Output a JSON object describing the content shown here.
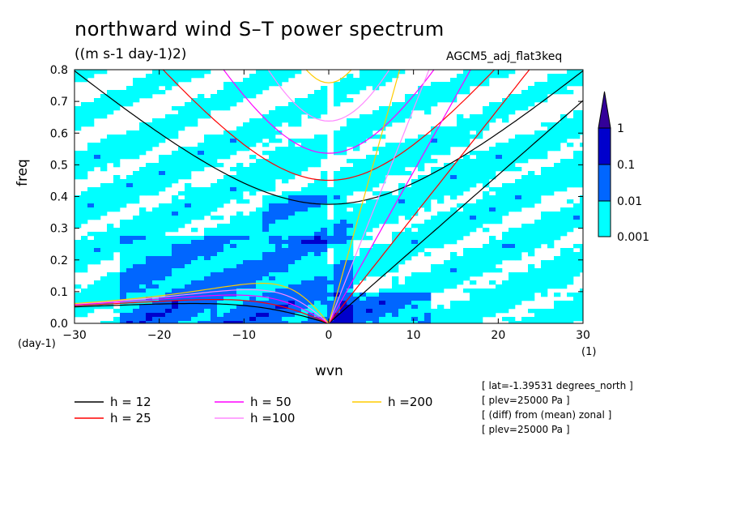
{
  "header": {
    "title": "northward wind S–T power spectrum",
    "units": "((m s-1 day-1)2)",
    "run_name": "AGCM5_adj_flat3keq"
  },
  "axes_text": {
    "ylabel": "freq",
    "xlabel": "wvn",
    "y_unit": "(day-1)",
    "x_unit": "(1)"
  },
  "info_lines": [
    "[ lat=-1.39531 degrees_north ]",
    "[ plev=25000 Pa ]",
    "[ (diff) from (mean) zonal ]",
    "[ plev=25000 Pa ]"
  ],
  "colors": {
    "level_0": "#00ffff",
    "level_1": "#0066ff",
    "level_2": "#0000cc",
    "level_over": "#330099",
    "h12": "#000000",
    "h25": "#ff0000",
    "h50": "#ff00ff",
    "h100": "#ff88ff",
    "h200": "#ffcc00"
  },
  "chart_data": {
    "type": "heatmap",
    "title": "northward wind S–T power spectrum",
    "xlabel": "wvn",
    "ylabel": "freq",
    "xlim": [
      -30,
      30
    ],
    "ylim": [
      0,
      0.8
    ],
    "xticks": [
      -30,
      -20,
      -10,
      0,
      10,
      20,
      30
    ],
    "yticks": [
      0.0,
      0.1,
      0.2,
      0.3,
      0.4,
      0.5,
      0.6,
      0.7,
      0.8
    ],
    "colorbar": {
      "levels": [
        0.001,
        0.01,
        0.1,
        1
      ],
      "labels": [
        "0.001",
        "0.01",
        "0.1",
        "1"
      ],
      "extend": "max"
    },
    "dispersion_curves": [
      {
        "name": "h = 12",
        "equivalent_depth_m": 12
      },
      {
        "name": "h = 25",
        "equivalent_depth_m": 25
      },
      {
        "name": "h = 50",
        "equivalent_depth_m": 50
      },
      {
        "name": "h =100",
        "equivalent_depth_m": 100
      },
      {
        "name": "h =200",
        "equivalent_depth_m": 200
      }
    ],
    "legend_position": "bottom-left"
  }
}
